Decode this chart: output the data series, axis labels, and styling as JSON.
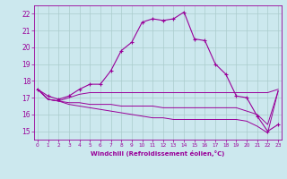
{
  "bg_color": "#cce8ee",
  "grid_color": "#aacccc",
  "line_color": "#990099",
  "x_ticks": [
    0,
    1,
    2,
    3,
    4,
    5,
    6,
    7,
    8,
    9,
    10,
    11,
    12,
    13,
    14,
    15,
    16,
    17,
    18,
    19,
    20,
    21,
    22,
    23
  ],
  "ylim": [
    14.5,
    22.5
  ],
  "xlim": [
    -0.3,
    23.3
  ],
  "yticks": [
    15,
    16,
    17,
    18,
    19,
    20,
    21,
    22
  ],
  "xlabel": "Windchill (Refroidissement éolien,°C)",
  "series1_x": [
    0,
    1,
    2,
    3,
    4,
    5,
    6,
    7,
    8,
    9,
    10,
    11,
    12,
    13,
    14,
    15,
    16,
    17,
    18,
    19,
    20,
    21,
    22,
    23
  ],
  "series1_y": [
    17.5,
    17.1,
    16.9,
    17.1,
    17.5,
    17.8,
    17.8,
    18.6,
    19.8,
    20.3,
    21.5,
    21.7,
    21.6,
    21.7,
    22.1,
    20.5,
    20.4,
    19.0,
    18.4,
    17.1,
    17.0,
    15.9,
    15.0,
    15.4
  ],
  "series2_x": [
    0,
    1,
    2,
    3,
    4,
    5,
    6,
    7,
    8,
    9,
    10,
    11,
    12,
    13,
    14,
    15,
    16,
    17,
    18,
    19,
    20,
    21,
    22,
    23
  ],
  "series2_y": [
    17.5,
    16.9,
    16.8,
    17.0,
    17.2,
    17.3,
    17.3,
    17.3,
    17.3,
    17.3,
    17.3,
    17.3,
    17.3,
    17.3,
    17.3,
    17.3,
    17.3,
    17.3,
    17.3,
    17.3,
    17.3,
    17.3,
    17.3,
    17.5
  ],
  "series3_x": [
    0,
    1,
    2,
    3,
    4,
    5,
    6,
    7,
    8,
    9,
    10,
    11,
    12,
    13,
    14,
    15,
    16,
    17,
    18,
    19,
    20,
    21,
    22,
    23
  ],
  "series3_y": [
    17.5,
    16.9,
    16.8,
    16.7,
    16.7,
    16.6,
    16.6,
    16.6,
    16.5,
    16.5,
    16.5,
    16.5,
    16.4,
    16.4,
    16.4,
    16.4,
    16.4,
    16.4,
    16.4,
    16.4,
    16.2,
    16.0,
    15.4,
    17.4
  ],
  "series4_x": [
    0,
    1,
    2,
    3,
    4,
    5,
    6,
    7,
    8,
    9,
    10,
    11,
    12,
    13,
    14,
    15,
    16,
    17,
    18,
    19,
    20,
    21,
    22,
    23
  ],
  "series4_y": [
    17.5,
    16.9,
    16.8,
    16.6,
    16.5,
    16.4,
    16.3,
    16.2,
    16.1,
    16.0,
    15.9,
    15.8,
    15.8,
    15.7,
    15.7,
    15.7,
    15.7,
    15.7,
    15.7,
    15.7,
    15.6,
    15.3,
    14.9,
    17.4
  ]
}
